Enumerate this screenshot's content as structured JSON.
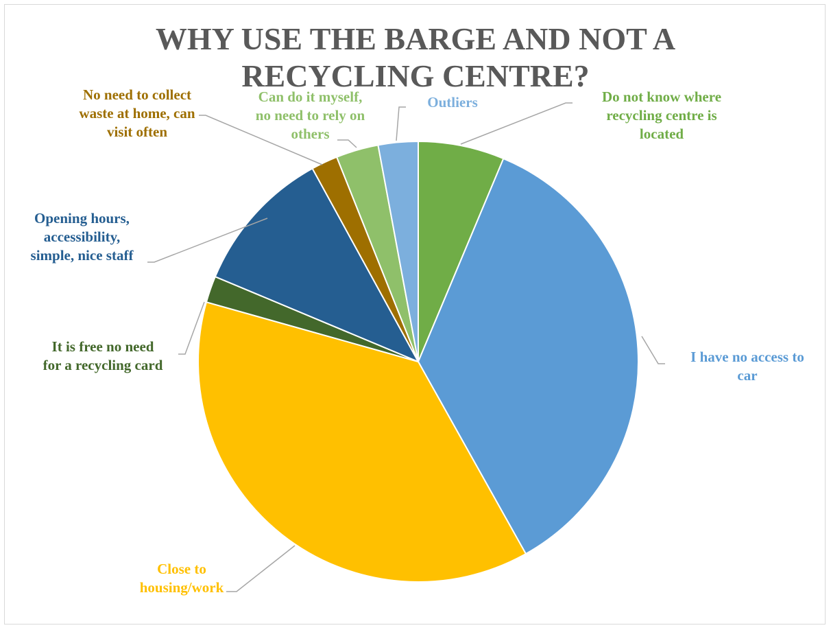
{
  "chart_data": {
    "type": "pie",
    "title": "WHY USE THE BARGE AND NOT A\nRECYCLING CENTRE?",
    "legend": "none",
    "slices": [
      {
        "label": "Do not know where\nrecycling centre is\nlocated",
        "value": 6.5,
        "color": "#70AD47"
      },
      {
        "label": "I have no access to\ncar",
        "value": 36.5,
        "color": "#5B9BD5"
      },
      {
        "label": "Close to\nhousing/work",
        "value": 38.5,
        "color": "#FFC000"
      },
      {
        "label": "It is free no need\nfor a recycling card",
        "value": 2.0,
        "color": "#43682B"
      },
      {
        "label": "Opening hours,\naccessibility,\nsimple, nice staff",
        "value": 11.0,
        "color": "#255E91"
      },
      {
        "label": "No need to collect\nwaste at home, can\nvisit often",
        "value": 2.0,
        "color": "#9E6F00"
      },
      {
        "label": "Can do it myself,\nno need to rely on\nothers",
        "value": 3.2,
        "color": "#8FC06A"
      },
      {
        "label": "Outliers",
        "value": 3.0,
        "color": "#7CAFDD"
      }
    ]
  }
}
